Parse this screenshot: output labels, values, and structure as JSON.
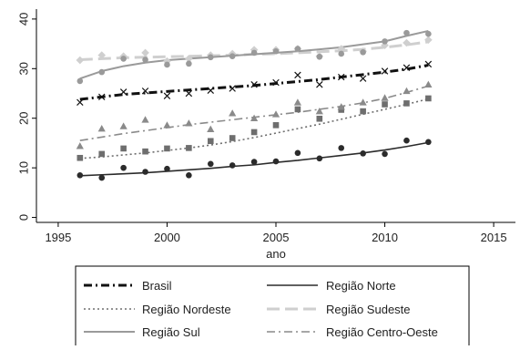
{
  "chart_data": {
    "type": "scatter",
    "title": "",
    "xlabel": "ano",
    "ylabel": "",
    "xlim": [
      1994,
      2016
    ],
    "ylim": [
      -1,
      42
    ],
    "xticks": [
      "1995",
      "2000",
      "2005",
      "2010",
      "2015"
    ],
    "yticks": [
      "0",
      "10",
      "20",
      "30",
      "40"
    ],
    "grid": false,
    "legend_position": "bottom",
    "x": [
      1996,
      1997,
      1998,
      1999,
      2000,
      2001,
      2002,
      2003,
      2004,
      2005,
      2006,
      2007,
      2008,
      2009,
      2010,
      2011,
      2012
    ],
    "series": [
      {
        "name": "Brasil",
        "color": "#111111",
        "line_style": "dash-dot",
        "line_width": 3,
        "marker": "x",
        "values": [
          23.2,
          24.3,
          25.3,
          25.5,
          24.5,
          25.0,
          25.6,
          26.0,
          26.8,
          27.2,
          28.7,
          26.8,
          28.3,
          28.0,
          29.5,
          30.2,
          30.9
        ],
        "fit": [
          23.8,
          24.3,
          24.8,
          25.1,
          25.4,
          25.7,
          26.0,
          26.3,
          26.6,
          27.0,
          27.4,
          27.8,
          28.3,
          28.8,
          29.3,
          29.9,
          30.7
        ]
      },
      {
        "name": "Região Norte",
        "color": "#2b2b2b",
        "line_style": "solid",
        "line_width": 1.6,
        "marker": "circle",
        "values": [
          8.5,
          8.0,
          10.0,
          9.2,
          9.8,
          8.5,
          10.8,
          10.5,
          11.2,
          11.3,
          13.0,
          11.9,
          14.0,
          12.9,
          12.8,
          15.5,
          15.2
        ],
        "fit": [
          8.4,
          8.6,
          8.8,
          9.0,
          9.3,
          9.6,
          9.9,
          10.3,
          10.6,
          11.1,
          11.5,
          12.0,
          12.5,
          13.0,
          13.6,
          14.3,
          15.1
        ]
      },
      {
        "name": "Região Nordeste",
        "color": "#6e6e6e",
        "line_style": "dotted",
        "line_width": 1.6,
        "marker": "square",
        "values": [
          12.0,
          12.8,
          13.9,
          13.3,
          13.9,
          14.0,
          15.4,
          16.0,
          17.2,
          18.6,
          21.8,
          19.9,
          21.7,
          21.4,
          22.8,
          23.0,
          24.0
        ],
        "fit": [
          11.9,
          12.2,
          12.6,
          13.0,
          13.5,
          14.0,
          14.6,
          15.3,
          16.1,
          17.0,
          17.9,
          18.8,
          19.8,
          20.8,
          21.8,
          22.8,
          23.9
        ]
      },
      {
        "name": "Região Sudeste",
        "color": "#cfcfcf",
        "line_style": "long-dash",
        "line_width": 3,
        "marker": "diamond",
        "values": [
          31.7,
          32.7,
          32.5,
          33.2,
          31.5,
          32.0,
          32.7,
          33.0,
          33.8,
          33.8,
          34.0,
          32.5,
          34.0,
          33.5,
          34.7,
          35.2,
          35.8
        ],
        "fit": [
          31.8,
          32.0,
          32.2,
          32.3,
          32.4,
          32.5,
          32.6,
          32.7,
          32.9,
          33.0,
          33.2,
          33.4,
          33.6,
          33.9,
          34.3,
          34.8,
          35.4
        ]
      },
      {
        "name": "Região Sul",
        "color": "#9a9a9a",
        "line_style": "solid",
        "line_width": 2,
        "marker": "circle",
        "values": [
          27.5,
          29.3,
          32.0,
          31.8,
          30.8,
          31.0,
          32.3,
          32.5,
          33.2,
          33.5,
          34.0,
          32.4,
          33.0,
          33.3,
          35.5,
          37.2,
          37.0
        ],
        "fit": [
          28.0,
          29.5,
          30.5,
          31.2,
          31.7,
          32.0,
          32.3,
          32.6,
          32.9,
          33.2,
          33.5,
          33.9,
          34.3,
          34.9,
          35.5,
          36.6,
          37.6
        ]
      },
      {
        "name": "Região Centro-Oeste",
        "color": "#8a8a8a",
        "line_style": "dash-dot",
        "line_width": 1.6,
        "marker": "triangle",
        "values": [
          14.4,
          17.9,
          18.4,
          19.7,
          18.6,
          19.0,
          17.8,
          21.0,
          20.0,
          20.8,
          23.2,
          21.4,
          22.3,
          23.2,
          24.1,
          25.5,
          26.8
        ],
        "fit": [
          15.5,
          16.2,
          16.9,
          17.5,
          18.1,
          18.7,
          19.2,
          19.7,
          20.2,
          20.7,
          21.2,
          21.8,
          22.4,
          23.1,
          24.0,
          25.2,
          26.5
        ]
      }
    ]
  }
}
